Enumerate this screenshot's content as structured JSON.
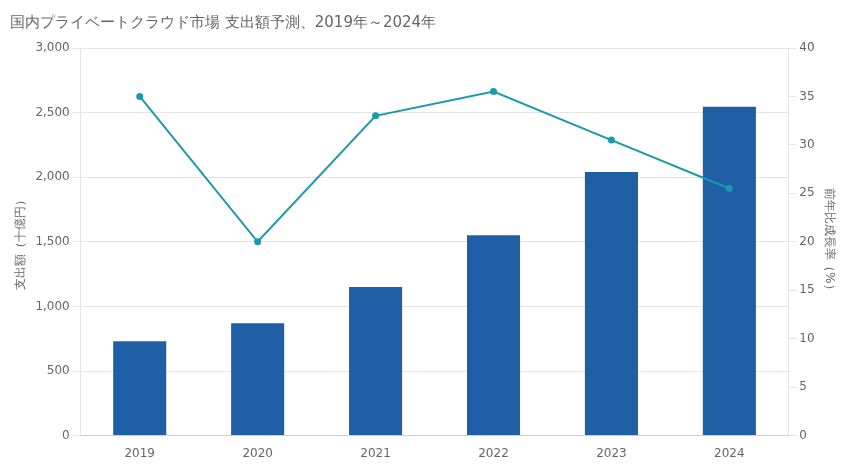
{
  "chart_data": {
    "type": "bar",
    "title": "国内プライベートクラウド市場 支出額予測、2019年～2024年",
    "categories": [
      "2019",
      "2020",
      "2021",
      "2022",
      "2023",
      "2024"
    ],
    "series": [
      {
        "type": "bar",
        "color": "#1f5fa6",
        "values": [
          730,
          870,
          1150,
          1550,
          2040,
          2545
        ]
      },
      {
        "type": "line",
        "color": "#1a9aaa",
        "marker": "circle",
        "axis": "y2",
        "values": [
          35.0,
          20.0,
          33.0,
          35.5,
          30.5,
          25.5
        ]
      }
    ],
    "ylabel": "支出額（十億円）",
    "y2label": "前年比成長率（%）",
    "ylim": [
      0,
      3000
    ],
    "yticks": [
      0,
      500,
      {
        "value": 1000,
        "label": "1,000"
      },
      {
        "value": 1500,
        "label": "1,500"
      },
      {
        "value": 2000,
        "label": "2,000"
      },
      {
        "value": 2500,
        "label": "2,500"
      },
      {
        "value": 3000,
        "label": "3,000"
      }
    ],
    "y2lim": [
      0,
      40
    ],
    "y2ticks": [
      0,
      5,
      10,
      15,
      20,
      25,
      30,
      35,
      40
    ],
    "grid": true
  }
}
